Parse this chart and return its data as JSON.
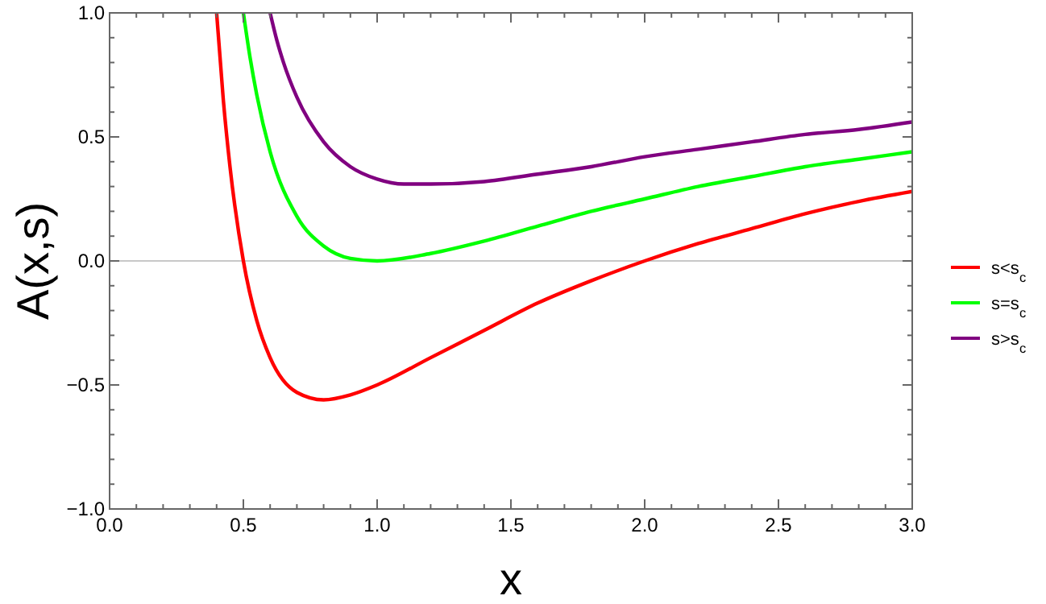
{
  "chart_data": {
    "type": "line",
    "xlabel": "x",
    "ylabel": "A(x,s)",
    "xlim": [
      0,
      3
    ],
    "ylim": [
      -1,
      1
    ],
    "xticks": [
      {
        "value": 0,
        "label": "0.0"
      },
      {
        "value": 0.1,
        "label": null
      },
      {
        "value": 0.2,
        "label": null
      },
      {
        "value": 0.3,
        "label": null
      },
      {
        "value": 0.4,
        "label": null
      },
      {
        "value": 0.5,
        "label": "0.5"
      },
      {
        "value": 0.6,
        "label": null
      },
      {
        "value": 0.7,
        "label": null
      },
      {
        "value": 0.8,
        "label": null
      },
      {
        "value": 0.9,
        "label": null
      },
      {
        "value": 1,
        "label": "1.0"
      },
      {
        "value": 1.1,
        "label": null
      },
      {
        "value": 1.2,
        "label": null
      },
      {
        "value": 1.3,
        "label": null
      },
      {
        "value": 1.4,
        "label": null
      },
      {
        "value": 1.5,
        "label": "1.5"
      },
      {
        "value": 1.6,
        "label": null
      },
      {
        "value": 1.7,
        "label": null
      },
      {
        "value": 1.8,
        "label": null
      },
      {
        "value": 1.9,
        "label": null
      },
      {
        "value": 2,
        "label": "2.0"
      },
      {
        "value": 2.1,
        "label": null
      },
      {
        "value": 2.2,
        "label": null
      },
      {
        "value": 2.3,
        "label": null
      },
      {
        "value": 2.4,
        "label": null
      },
      {
        "value": 2.5,
        "label": "2.5"
      },
      {
        "value": 2.6,
        "label": null
      },
      {
        "value": 2.7,
        "label": null
      },
      {
        "value": 2.8,
        "label": null
      },
      {
        "value": 2.9,
        "label": null
      },
      {
        "value": 3,
        "label": "3.0"
      }
    ],
    "yticks": [
      {
        "value": -1,
        "label": "−1.0"
      },
      {
        "value": -0.9,
        "label": null
      },
      {
        "value": -0.8,
        "label": null
      },
      {
        "value": -0.7,
        "label": null
      },
      {
        "value": -0.6,
        "label": null
      },
      {
        "value": -0.5,
        "label": "−0.5"
      },
      {
        "value": -0.4,
        "label": null
      },
      {
        "value": -0.3,
        "label": null
      },
      {
        "value": -0.2,
        "label": null
      },
      {
        "value": -0.1,
        "label": null
      },
      {
        "value": 0,
        "label": "0.0"
      },
      {
        "value": 0.1,
        "label": null
      },
      {
        "value": 0.2,
        "label": null
      },
      {
        "value": 0.3,
        "label": null
      },
      {
        "value": 0.4,
        "label": null
      },
      {
        "value": 0.5,
        "label": "0.5"
      },
      {
        "value": 0.6,
        "label": null
      },
      {
        "value": 0.7,
        "label": null
      },
      {
        "value": 0.8,
        "label": null
      },
      {
        "value": 0.9,
        "label": null
      },
      {
        "value": 1,
        "label": "1.0"
      }
    ],
    "ref_lines": [
      {
        "axis": "y",
        "value": 0,
        "label": null,
        "color": "#c8c8c8"
      }
    ],
    "grid": false,
    "legend": "right",
    "marker": "none",
    "line_style": "solid",
    "series": [
      {
        "name": "s<s$_{c}$",
        "color": "#ff0000",
        "x": [
          0.4,
          0.425,
          0.45,
          0.5,
          0.55,
          0.6,
          0.7,
          0.8,
          0.9,
          1.0,
          1.2,
          1.4,
          1.6,
          1.8,
          2.0,
          2.2,
          2.4,
          2.6,
          2.8,
          3.0
        ],
        "values": [
          1.0,
          0.65,
          0.38,
          0,
          -0.24,
          -0.39,
          -0.53,
          -0.56,
          -0.54,
          -0.5,
          -0.39,
          -0.28,
          -0.17,
          -0.08,
          0,
          0.07,
          0.13,
          0.19,
          0.24,
          0.28
        ]
      },
      {
        "name": "s=s$_{c}$",
        "color": "#00ff00",
        "x": [
          0.5,
          0.525,
          0.55,
          0.6,
          0.7,
          0.8,
          0.9,
          1.0,
          1.2,
          1.4,
          1.6,
          1.8,
          2.0,
          2.2,
          2.4,
          2.6,
          2.8,
          3.0
        ],
        "values": [
          1.0,
          0.82,
          0.67,
          0.44,
          0.18,
          0.06,
          0.01,
          0,
          0.03,
          0.08,
          0.14,
          0.2,
          0.25,
          0.3,
          0.34,
          0.38,
          0.41,
          0.44
        ]
      },
      {
        "name": "s>s$_{c}$",
        "color": "#800080",
        "x": [
          0.6,
          0.625,
          0.65,
          0.7,
          0.8,
          0.9,
          1.0,
          1.1,
          1.2,
          1.4,
          1.6,
          1.8,
          2.0,
          2.2,
          2.4,
          2.6,
          2.8,
          3.0
        ],
        "values": [
          1.0,
          0.89,
          0.8,
          0.66,
          0.48,
          0.38,
          0.33,
          0.31,
          0.31,
          0.32,
          0.35,
          0.38,
          0.42,
          0.45,
          0.48,
          0.51,
          0.53,
          0.56
        ]
      }
    ]
  }
}
